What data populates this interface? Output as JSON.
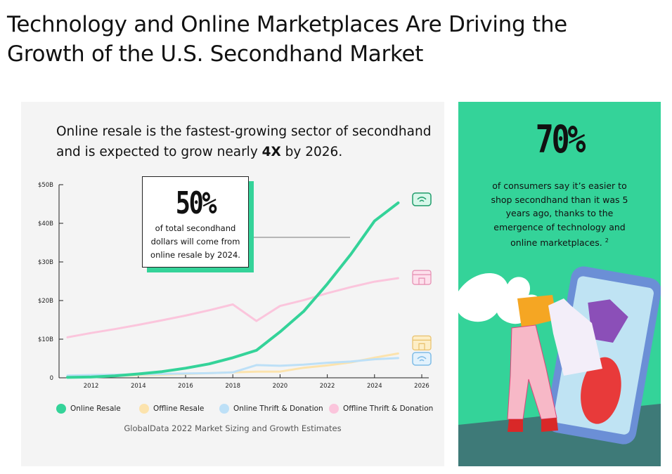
{
  "title": "Technology and Online Marketplaces Are Driving the Growth of the U.S. Secondhand Market",
  "chart_panel": {
    "subtitle_pre": "Online resale is the fastest-growing sector of secondhand and is expected to grow nearly ",
    "subtitle_bold": "4X",
    "subtitle_post": " by 2026.",
    "callout_value": "50%",
    "callout_text": "of total secondhand dollars will come from online resale by 2024.",
    "source": "GlobalData 2022 Market Sizing and Growth Estimates"
  },
  "stat_panel": {
    "value": "70%",
    "text": "of consumers say it’s easier to shop secondhand than it was 5 years ago, thanks to the emergence of technology and online marketplaces.",
    "footnote": "2"
  },
  "colors": {
    "online_resale": "#34d399",
    "offline_resale": "#fce3ad",
    "online_thrift": "#bde0f7",
    "offline_thrift": "#fbc5dc",
    "panel_bg": "#f4f4f4",
    "accent_green": "#34d399"
  },
  "icons": [
    "monitor-icon",
    "storefront-icon",
    "storefront-icon",
    "monitor-icon"
  ],
  "chart_data": {
    "type": "line",
    "x": [
      2011,
      2012,
      2013,
      2014,
      2015,
      2016,
      2017,
      2018,
      2019,
      2020,
      2021,
      2022,
      2023,
      2024,
      2025,
      2026
    ],
    "series": [
      {
        "name": "Online Resale",
        "color": "#34d399",
        "values": [
          0.1,
          0.2,
          0.5,
          1.0,
          1.6,
          2.5,
          3.6,
          5.2,
          7.1,
          11.9,
          17.2,
          24.3,
          32.0,
          40.6,
          45.3,
          null
        ]
      },
      {
        "name": "Offline Resale",
        "color": "#fce3ad",
        "values": [
          0.3,
          0.4,
          0.5,
          0.7,
          0.8,
          1.0,
          1.2,
          1.4,
          1.6,
          1.6,
          2.6,
          3.2,
          4.0,
          5.2,
          6.3,
          null
        ]
      },
      {
        "name": "Online Thrift & Donation",
        "color": "#bde0f7",
        "values": [
          0.6,
          0.7,
          0.8,
          0.9,
          1.0,
          1.1,
          1.2,
          1.4,
          3.3,
          3.1,
          3.4,
          3.9,
          4.2,
          4.8,
          5.1,
          null
        ]
      },
      {
        "name": "Offline Thrift & Donation",
        "color": "#fbc5dc",
        "values": [
          10.5,
          11.6,
          12.6,
          13.7,
          14.9,
          16.1,
          17.5,
          19.0,
          14.7,
          18.6,
          20.1,
          21.9,
          23.5,
          24.9,
          25.8,
          null
        ]
      }
    ],
    "x_ticks": [
      "2012",
      "2014",
      "2016",
      "2018",
      "2020",
      "2022",
      "2024",
      "2026"
    ],
    "x_tick_values": [
      2012,
      2014,
      2016,
      2018,
      2020,
      2022,
      2024,
      2026
    ],
    "y_ticks": [
      "0",
      "$10B",
      "$20B",
      "$30B",
      "$40B",
      "$50B"
    ],
    "y_tick_values": [
      0,
      10,
      20,
      30,
      40,
      50
    ],
    "xlim": [
      2011,
      2026
    ],
    "ylim": [
      0,
      50
    ],
    "title": "",
    "xlabel": "",
    "ylabel": "",
    "legend_position": "bottom",
    "grid": false
  }
}
